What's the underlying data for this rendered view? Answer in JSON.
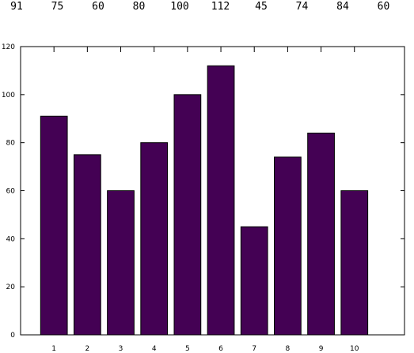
{
  "chart_data": {
    "type": "bar",
    "title": "",
    "xlabel": "",
    "ylabel": "",
    "categories": [
      "1",
      "2",
      "3",
      "4",
      "5",
      "6",
      "7",
      "8",
      "9",
      "10"
    ],
    "values": [
      91,
      75,
      60,
      80,
      100,
      112,
      45,
      74,
      84,
      60
    ],
    "top_labels": [
      "91",
      "75",
      "60",
      "80",
      "100",
      "112",
      "45",
      "74",
      "84",
      "60"
    ],
    "yticks": [
      "0",
      "20",
      "40",
      "60",
      "80",
      "100",
      "120"
    ],
    "ylim": [
      0,
      120
    ],
    "xlim": [
      0,
      11.5
    ],
    "grid": false,
    "legend": "none",
    "bar_color": "#440154",
    "bar_edge_color": "#000000"
  }
}
